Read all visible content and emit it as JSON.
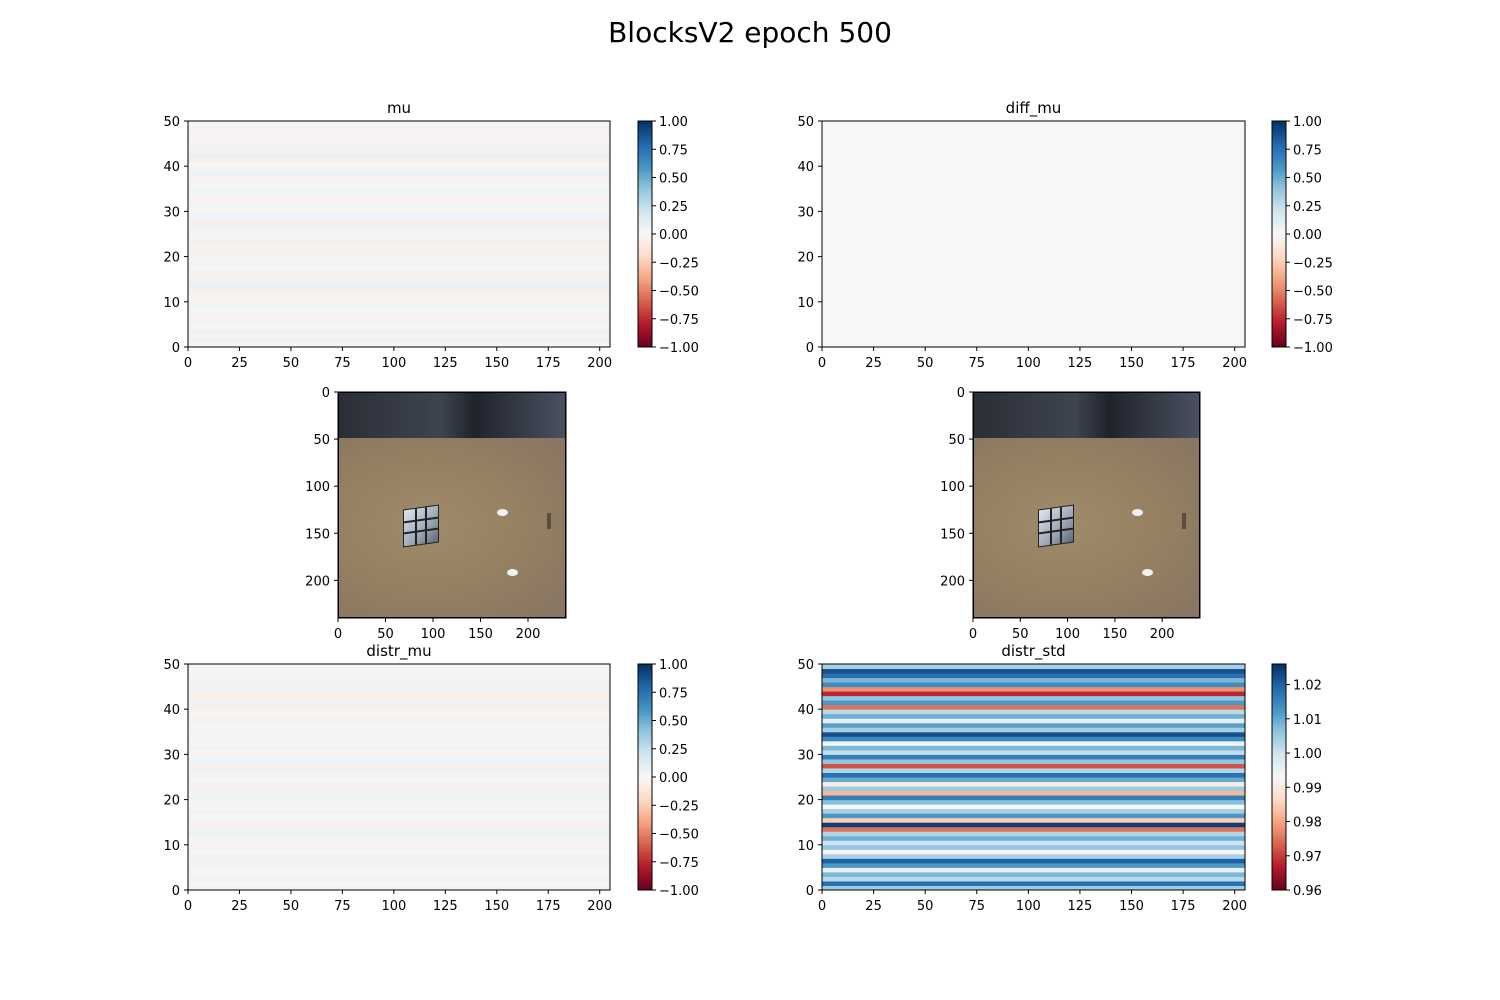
{
  "figure": {
    "title": "BlocksV2 epoch 500"
  },
  "chart_data": [
    {
      "type": "heatmap",
      "title": "mu",
      "xlim": [
        0,
        205
      ],
      "ylim": [
        0,
        50
      ],
      "xticks": [
        0,
        25,
        50,
        75,
        100,
        125,
        150,
        175,
        200
      ],
      "yticks": [
        0,
        10,
        20,
        30,
        40,
        50
      ],
      "colormap": "RdBu",
      "vmin": -1.0,
      "vmax": 1.0,
      "colorbar_ticks": [
        "1.00",
        "0.75",
        "0.50",
        "0.25",
        "0.00",
        "−0.25",
        "−0.50",
        "−0.75",
        "−1.00"
      ],
      "row_values": [
        -0.02,
        0.05,
        -0.03,
        0.06,
        -0.02,
        0.04,
        -0.04,
        0.03,
        -0.02,
        0.05,
        -0.03,
        0.02,
        -0.05,
        0.07,
        0.06,
        -0.06,
        0.04,
        -0.02,
        0.05,
        -0.03,
        0.04,
        -0.05,
        0.03,
        -0.06,
        0.02,
        -0.03,
        0.04,
        -0.07,
        0.03,
        0.05,
        -0.02,
        0.04,
        -0.03,
        0.02,
        0.05,
        -0.02,
        0.03,
        -0.04,
        0.04,
        -0.03,
        0.02,
        -0.07,
        0.08,
        -0.06,
        0.05,
        -0.03,
        0.02,
        -0.04,
        0.03,
        -0.02
      ]
    },
    {
      "type": "heatmap",
      "title": "diff_mu",
      "xlim": [
        0,
        205
      ],
      "ylim": [
        0,
        50
      ],
      "xticks": [
        0,
        25,
        50,
        75,
        100,
        125,
        150,
        175,
        200
      ],
      "yticks": [
        0,
        10,
        20,
        30,
        40,
        50
      ],
      "colormap": "RdBu",
      "vmin": -1.0,
      "vmax": 1.0,
      "colorbar_ticks": [
        "1.00",
        "0.75",
        "0.50",
        "0.25",
        "0.00",
        "−0.25",
        "−0.50",
        "−0.75",
        "−1.00"
      ],
      "row_values": [
        0.0
      ]
    },
    {
      "type": "image",
      "xlim": [
        0,
        240
      ],
      "ylim": [
        240,
        0
      ],
      "xticks": [
        0,
        50,
        100,
        150,
        200
      ],
      "yticks": [
        0,
        50,
        100,
        150,
        200
      ]
    },
    {
      "type": "image",
      "xlim": [
        0,
        240
      ],
      "ylim": [
        240,
        0
      ],
      "xticks": [
        0,
        50,
        100,
        150,
        200
      ],
      "yticks": [
        0,
        50,
        100,
        150,
        200
      ]
    },
    {
      "type": "heatmap",
      "title": "distr_mu",
      "xlim": [
        0,
        205
      ],
      "ylim": [
        0,
        50
      ],
      "xticks": [
        0,
        25,
        50,
        75,
        100,
        125,
        150,
        175,
        200
      ],
      "yticks": [
        0,
        10,
        20,
        30,
        40,
        50
      ],
      "colormap": "RdBu",
      "vmin": -1.0,
      "vmax": 1.0,
      "colorbar_ticks": [
        "1.00",
        "0.75",
        "0.50",
        "0.25",
        "0.00",
        "−0.25",
        "−0.50",
        "−0.75",
        "−1.00"
      ],
      "row_values": [
        0.03,
        -0.02,
        0.04,
        -0.03,
        0.02,
        0.05,
        -0.04,
        0.03,
        -0.02,
        0.04,
        -0.03,
        0.02,
        0.06,
        0.05,
        -0.05,
        0.03,
        -0.02,
        0.04,
        -0.03,
        0.02,
        0.05,
        -0.04,
        0.03,
        -0.05,
        0.02,
        -0.03,
        0.04,
        -0.05,
        0.03,
        0.02,
        -0.02,
        0.04,
        -0.03,
        0.02,
        -0.04,
        0.03,
        -0.02,
        0.04,
        -0.03,
        0.02,
        -0.05,
        0.04,
        -0.06,
        -0.05,
        0.06,
        -0.04,
        0.03,
        -0.02,
        0.02,
        -0.03
      ]
    },
    {
      "type": "heatmap",
      "title": "distr_std",
      "xlim": [
        0,
        205
      ],
      "ylim": [
        0,
        50
      ],
      "xticks": [
        0,
        25,
        50,
        75,
        100,
        125,
        150,
        175,
        200
      ],
      "yticks": [
        0,
        10,
        20,
        30,
        40,
        50
      ],
      "colormap": "RdBu",
      "vmin": 0.96,
      "vmax": 1.026,
      "colorbar_ticks": [
        "1.02",
        "1.01",
        "1.00",
        "0.99",
        "0.98",
        "0.97",
        "0.96"
      ],
      "row_values": [
        1.005,
        1.018,
        1.002,
        1.008,
        0.996,
        1.012,
        1.02,
        1.004,
        0.992,
        1.006,
        1.0,
        1.009,
        1.003,
        0.975,
        1.024,
        0.985,
        1.012,
        1.004,
        0.993,
        1.007,
        1.016,
        0.982,
        1.005,
        0.99,
        1.01,
        1.018,
        1.003,
        0.972,
        1.006,
        1.016,
        1.001,
        1.008,
        0.994,
        1.014,
        1.022,
        1.004,
        1.011,
        0.996,
        1.009,
        1.002,
        0.975,
        1.012,
        1.006,
        0.968,
        0.978,
        1.014,
        1.008,
        1.018,
        1.022,
        1.004
      ]
    }
  ]
}
